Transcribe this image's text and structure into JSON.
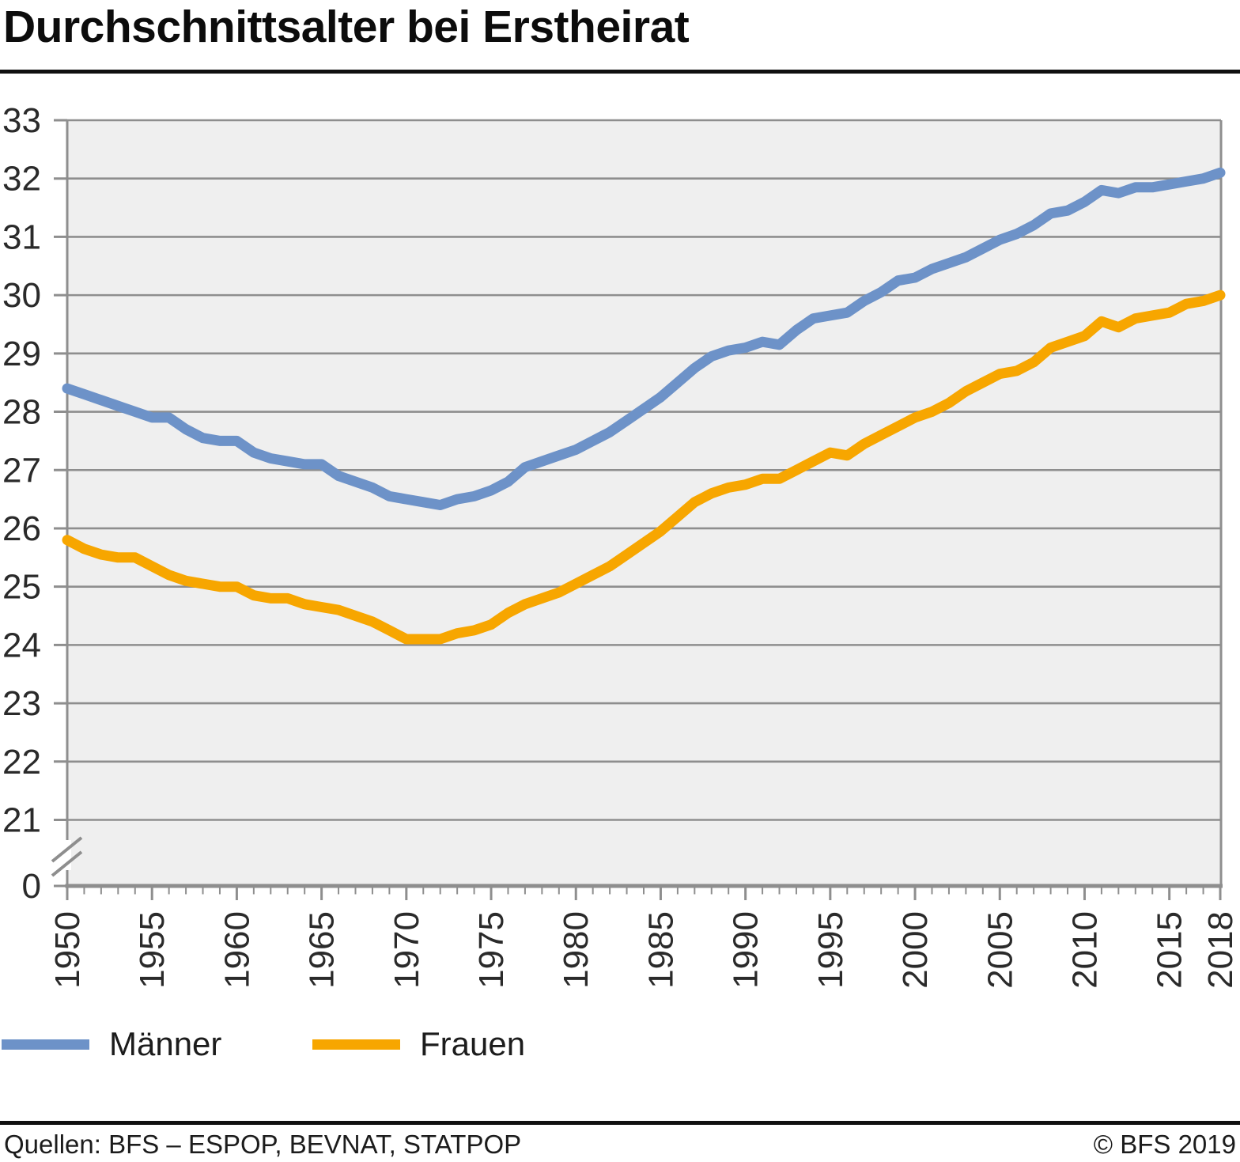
{
  "header": {
    "title": "Durchschnittsalter bei Erstheirat"
  },
  "colors": {
    "maenner": "#6d92c8",
    "frauen": "#f7a600",
    "grid": "#8e8e8e",
    "plot_background": "#efefef",
    "axis_text": "#2a2a2a",
    "rule": "#101010"
  },
  "chart_data": {
    "type": "line",
    "title": "Durchschnittsalter bei Erstheirat",
    "xlabel": "",
    "ylabel": "",
    "grid": "horizontal",
    "legend_position": "bottom-left",
    "y_ticks": [
      33,
      32,
      31,
      30,
      29,
      28,
      27,
      26,
      25,
      24,
      23,
      22,
      21,
      0
    ],
    "y_axis_break_between": [
      0,
      21
    ],
    "ylim_linear": [
      21,
      33
    ],
    "x_major_ticks": [
      1950,
      1955,
      1960,
      1965,
      1970,
      1975,
      1980,
      1985,
      1990,
      1995,
      2000,
      2005,
      2010,
      2015,
      2018
    ],
    "years": [
      1950,
      1951,
      1952,
      1953,
      1954,
      1955,
      1956,
      1957,
      1958,
      1959,
      1960,
      1961,
      1962,
      1963,
      1964,
      1965,
      1966,
      1967,
      1968,
      1969,
      1970,
      1971,
      1972,
      1973,
      1974,
      1975,
      1976,
      1977,
      1978,
      1979,
      1980,
      1981,
      1982,
      1983,
      1984,
      1985,
      1986,
      1987,
      1988,
      1989,
      1990,
      1991,
      1992,
      1993,
      1994,
      1995,
      1996,
      1997,
      1998,
      1999,
      2000,
      2001,
      2002,
      2003,
      2004,
      2005,
      2006,
      2007,
      2008,
      2009,
      2010,
      2011,
      2012,
      2013,
      2014,
      2015,
      2016,
      2017,
      2018
    ],
    "series": [
      {
        "id": "maenner",
        "name": "Männer",
        "color": "#6d92c8",
        "values": [
          28.4,
          28.3,
          28.2,
          28.1,
          28.0,
          27.9,
          27.9,
          27.7,
          27.55,
          27.5,
          27.5,
          27.3,
          27.2,
          27.15,
          27.1,
          27.1,
          26.9,
          26.8,
          26.7,
          26.55,
          26.5,
          26.45,
          26.4,
          26.5,
          26.55,
          26.65,
          26.8,
          27.05,
          27.15,
          27.25,
          27.35,
          27.5,
          27.65,
          27.85,
          28.05,
          28.25,
          28.5,
          28.75,
          28.95,
          29.05,
          29.1,
          29.2,
          29.15,
          29.4,
          29.6,
          29.65,
          29.7,
          29.9,
          30.05,
          30.25,
          30.3,
          30.45,
          30.55,
          30.65,
          30.8,
          30.95,
          31.05,
          31.2,
          31.4,
          31.45,
          31.6,
          31.8,
          31.75,
          31.85,
          31.85,
          31.9,
          31.95,
          32.0,
          32.1
        ]
      },
      {
        "id": "frauen",
        "name": "Frauen",
        "color": "#f7a600",
        "values": [
          25.8,
          25.65,
          25.55,
          25.5,
          25.5,
          25.35,
          25.2,
          25.1,
          25.05,
          25.0,
          25.0,
          24.85,
          24.8,
          24.8,
          24.7,
          24.65,
          24.6,
          24.5,
          24.4,
          24.25,
          24.1,
          24.1,
          24.1,
          24.2,
          24.25,
          24.35,
          24.55,
          24.7,
          24.8,
          24.9,
          25.05,
          25.2,
          25.35,
          25.55,
          25.75,
          25.95,
          26.2,
          26.45,
          26.6,
          26.7,
          26.75,
          26.85,
          26.85,
          27.0,
          27.15,
          27.3,
          27.25,
          27.45,
          27.6,
          27.75,
          27.9,
          28.0,
          28.15,
          28.35,
          28.5,
          28.65,
          28.7,
          28.85,
          29.1,
          29.2,
          29.3,
          29.55,
          29.45,
          29.6,
          29.65,
          29.7,
          29.85,
          29.9,
          30.0
        ]
      }
    ]
  },
  "legend": {
    "items": [
      {
        "label": "Männer",
        "color": "#6d92c8"
      },
      {
        "label": "Frauen",
        "color": "#f7a600"
      }
    ]
  },
  "footer": {
    "sources": "Quellen: BFS – ESPOP, BEVNAT, STATPOP",
    "copyright": "© BFS 2019"
  }
}
